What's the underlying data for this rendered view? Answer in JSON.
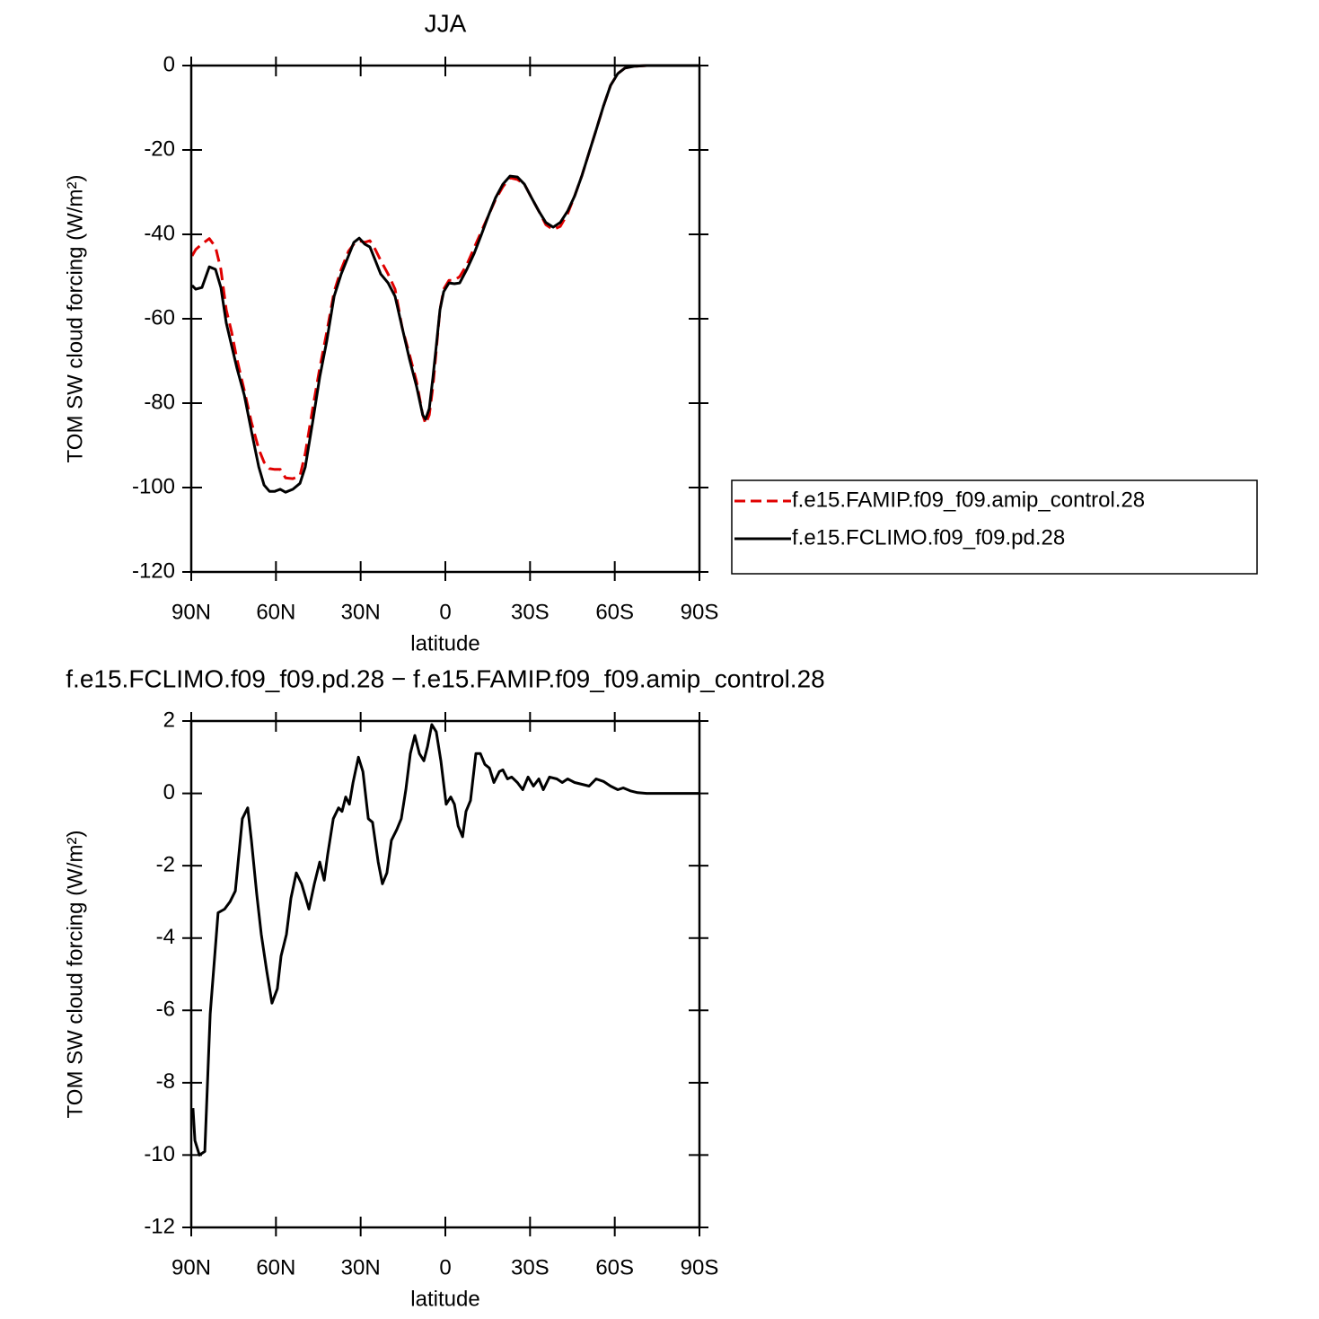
{
  "chart_data": [
    {
      "type": "line",
      "title": "JJA",
      "xlabel": "latitude",
      "ylabel": "TOM SW cloud forcing (W/m²)",
      "xlim": [
        90,
        -90
      ],
      "ylim": [
        -120,
        0
      ],
      "xticks": [
        {
          "value": 90,
          "label": "90N"
        },
        {
          "value": 60,
          "label": "60N"
        },
        {
          "value": 30,
          "label": "30N"
        },
        0,
        {
          "value": -30,
          "label": "30S"
        },
        {
          "value": -60,
          "label": "60S"
        },
        {
          "value": -90,
          "label": "90S"
        }
      ],
      "yticks": [
        0,
        -20,
        -40,
        -60,
        -80,
        -100,
        -120
      ],
      "legend": "right",
      "x": [
        89.7,
        88.4,
        86.2,
        83.6,
        81.4,
        79.5,
        77.6,
        75.7,
        73.8,
        71.2,
        68.7,
        66.1,
        64.2,
        62.3,
        60.4,
        58.5,
        56.6,
        54,
        51.5,
        49.6,
        47,
        44.5,
        42,
        39.4,
        36.9,
        34.3,
        32.4,
        30.5,
        28.6,
        26.7,
        24.8,
        22.9,
        20.3,
        17.8,
        15.3,
        12.7,
        10.2,
        8,
        7,
        5.7,
        4.4,
        3.2,
        1.9,
        0.6,
        -1.3,
        -3.2,
        -5.1,
        -7.6,
        -10.2,
        -12.7,
        -15.3,
        -17.8,
        -20.4,
        -22.9,
        -25.5,
        -28,
        -30.5,
        -33.1,
        -35.6,
        -38.2,
        -40.7,
        -43.3,
        -45.8,
        -48.4,
        -50.9,
        -53.4,
        -56,
        -58.5,
        -61.1,
        -63.6,
        -66.8,
        -71.3,
        -90
      ],
      "series": [
        {
          "name": "f.e15.FAMIP.f09_f09.amip_control.28",
          "color": "#e00000",
          "dashed": true,
          "values": [
            -45.1,
            -43.6,
            -42.3,
            -41,
            -43,
            -48.3,
            -57.9,
            -63.2,
            -69.6,
            -77,
            -84.5,
            -90.9,
            -94,
            -95.5,
            -95.7,
            -95.7,
            -97.7,
            -97.9,
            -97.2,
            -91.9,
            -81.3,
            -71.7,
            -63.2,
            -53.6,
            -48.3,
            -44,
            -42.3,
            -41.5,
            -41.9,
            -41.5,
            -43.6,
            -46.2,
            -49.4,
            -53,
            -62.1,
            -68.5,
            -74.9,
            -82.8,
            -84.9,
            -82.8,
            -76,
            -67.4,
            -57.9,
            -53,
            -50.9,
            -50.9,
            -50,
            -47.2,
            -43.2,
            -39.4,
            -35.5,
            -31.7,
            -28.7,
            -26.6,
            -27,
            -28.1,
            -31.3,
            -34.5,
            -37.7,
            -38.9,
            -38.1,
            -35.1,
            -30.9,
            -26,
            -20.6,
            -15.3,
            -9.6,
            -4.7,
            -1.9,
            -0.6,
            -0.2,
            0,
            0
          ]
        },
        {
          "name": "f.e15.FCLIMO.f09_f09.pd.28",
          "color": "#000000",
          "dashed": false,
          "values": [
            -52.1,
            -53,
            -52.6,
            -47.7,
            -48.3,
            -52.6,
            -61,
            -66.4,
            -71.7,
            -78.1,
            -86.6,
            -95.1,
            -99.4,
            -100.9,
            -100.9,
            -100.4,
            -101.1,
            -100.4,
            -99,
            -95.1,
            -84.5,
            -73.8,
            -65.3,
            -54.7,
            -49.4,
            -45.1,
            -41.9,
            -40.9,
            -42.3,
            -43,
            -46.2,
            -49.4,
            -51.5,
            -54.7,
            -62.1,
            -69.6,
            -76,
            -82.8,
            -83.8,
            -81.3,
            -73.8,
            -66.4,
            -57.9,
            -53.6,
            -51.5,
            -51.7,
            -51.5,
            -48.3,
            -44.5,
            -40.2,
            -35.5,
            -31.3,
            -28.1,
            -26.2,
            -26.4,
            -28.1,
            -31.3,
            -34.5,
            -37.2,
            -38.3,
            -37.2,
            -34.5,
            -30.9,
            -26,
            -20.6,
            -15.3,
            -9.6,
            -4.7,
            -1.9,
            -0.6,
            -0.2,
            0,
            0
          ]
        }
      ]
    },
    {
      "type": "line",
      "title": "f.e15.FCLIMO.f09_f09.pd.28 − f.e15.FAMIP.f09_f09.amip_control.28",
      "xlabel": "latitude",
      "ylabel": "TOM SW cloud forcing (W/m²)",
      "xlim": [
        90,
        -90
      ],
      "ylim": [
        -12,
        2
      ],
      "xticks": [
        {
          "value": 90,
          "label": "90N"
        },
        {
          "value": 60,
          "label": "60N"
        },
        {
          "value": 30,
          "label": "30N"
        },
        0,
        {
          "value": -30,
          "label": "30S"
        },
        {
          "value": -60,
          "label": "60S"
        },
        {
          "value": -90,
          "label": "90S"
        }
      ],
      "yticks": [
        2,
        0,
        -2,
        -4,
        -6,
        -8,
        -10,
        -12
      ],
      "x": [
        89.4,
        88.7,
        87.1,
        85.2,
        83.3,
        80.5,
        78.2,
        76.3,
        74.4,
        71.9,
        70,
        68.7,
        66.8,
        65.2,
        63.3,
        61.4,
        59.5,
        58.2,
        56.3,
        54.7,
        52.8,
        50.9,
        48.3,
        46.4,
        44.5,
        42.9,
        41.7,
        39.7,
        37.8,
        36.6,
        35.3,
        34,
        32.7,
        30.8,
        29.2,
        27.3,
        25.8,
        23.8,
        22.3,
        20.7,
        19.1,
        17.2,
        15.6,
        14,
        12.4,
        10.8,
        9.2,
        7.6,
        6.3,
        4.8,
        3.2,
        1.6,
        -0.3,
        -1.9,
        -3.2,
        -4.5,
        -6.1,
        -7.3,
        -8.9,
        -10.8,
        -12.4,
        -14,
        -15.6,
        -17.2,
        -19.1,
        -20.4,
        -22,
        -23.5,
        -25.5,
        -27.4,
        -29.3,
        -31.2,
        -33.1,
        -34.7,
        -36.9,
        -39.5,
        -41.4,
        -43.3,
        -45.8,
        -48.4,
        -50.9,
        -53.4,
        -56,
        -58.5,
        -61.1,
        -63,
        -65.5,
        -68.1,
        -71.3,
        -77.6,
        -90
      ],
      "series": [
        {
          "color": "#000000",
          "dashed": false,
          "values": [
            -8.7,
            -9.6,
            -10,
            -9.9,
            -6.1,
            -3.3,
            -3.2,
            -3.0,
            -2.7,
            -0.7,
            -0.4,
            -1.3,
            -2.8,
            -3.9,
            -4.9,
            -5.8,
            -5.4,
            -4.5,
            -3.9,
            -2.9,
            -2.2,
            -2.5,
            -3.2,
            -2.5,
            -1.9,
            -2.4,
            -1.7,
            -0.7,
            -0.4,
            -0.5,
            -0.1,
            -0.3,
            0.3,
            1.0,
            0.6,
            -0.7,
            -0.8,
            -1.9,
            -2.5,
            -2.2,
            -1.3,
            -1.0,
            -0.7,
            0.1,
            1.1,
            1.6,
            1.1,
            0.9,
            1.3,
            1.9,
            1.7,
            0.9,
            -0.3,
            -0.1,
            -0.3,
            -0.9,
            -1.2,
            -0.5,
            -0.2,
            1.1,
            1.1,
            0.8,
            0.7,
            0.3,
            0.6,
            0.65,
            0.4,
            0.45,
            0.3,
            0.1,
            0.45,
            0.2,
            0.4,
            0.1,
            0.45,
            0.4,
            0.3,
            0.4,
            0.3,
            0.25,
            0.2,
            0.4,
            0.33,
            0.2,
            0.1,
            0.15,
            0.07,
            0.02,
            0,
            0,
            0
          ]
        }
      ]
    }
  ]
}
